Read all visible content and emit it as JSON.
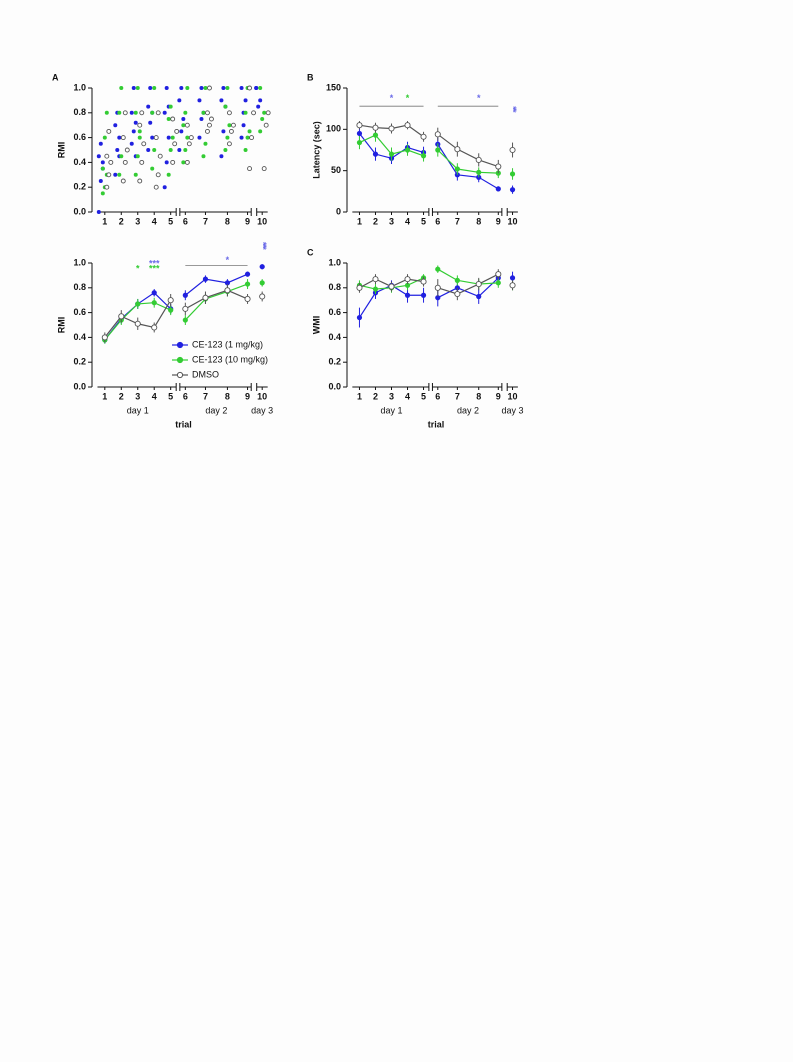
{
  "chart_data": [
    {
      "type": "scatter",
      "panel": "A",
      "ylabel": "RMI",
      "categories": [
        "1",
        "2",
        "3",
        "4",
        "5",
        "6",
        "7",
        "8",
        "9",
        "10"
      ],
      "ylim": [
        0,
        1
      ],
      "yticks": [
        {
          "value": 0,
          "label": "0.0"
        },
        0.2,
        0.4,
        0.6,
        0.8,
        {
          "value": 1,
          "label": "1.0"
        }
      ],
      "series": [
        {
          "color": "#2020e0",
          "marker": "filled",
          "values": [
            [
              0.0,
              0.25,
              0.35,
              0.45,
              0.55,
              0.4
            ],
            [
              0.3,
              0.5,
              0.6,
              0.7,
              0.8,
              0.45
            ],
            [
              0.55,
              0.65,
              0.72,
              0.8,
              1.0,
              0.45
            ],
            [
              0.5,
              0.72,
              0.8,
              0.85,
              1.0,
              0.6
            ],
            [
              0.2,
              0.4,
              0.6,
              0.8,
              1.0,
              0.85
            ],
            [
              0.5,
              0.65,
              0.75,
              0.9,
              1.0
            ],
            [
              0.6,
              0.75,
              0.8,
              0.9,
              1.0
            ],
            [
              0.45,
              0.65,
              0.85,
              0.9,
              1.0
            ],
            [
              0.6,
              0.8,
              0.9,
              1.0,
              0.7
            ],
            [
              1.0,
              0.85,
              0.9,
              1.0
            ]
          ]
        },
        {
          "color": "#33cc33",
          "marker": "filled",
          "values": [
            [
              0.15,
              0.2,
              0.3,
              0.35,
              0.6,
              0.8
            ],
            [
              0.3,
              0.45,
              0.6,
              0.8,
              1.0
            ],
            [
              0.3,
              0.45,
              0.6,
              0.8,
              1.0,
              0.65
            ],
            [
              0.35,
              0.5,
              0.6,
              0.8,
              1.0
            ],
            [
              0.3,
              0.5,
              0.6,
              0.75,
              0.85
            ],
            [
              0.4,
              0.5,
              0.6,
              0.7,
              0.8,
              1.0
            ],
            [
              0.45,
              0.55,
              0.65,
              0.8,
              1.0
            ],
            [
              0.5,
              0.6,
              0.7,
              0.85,
              1.0
            ],
            [
              0.5,
              0.6,
              0.65,
              0.8,
              1.0
            ],
            [
              0.65,
              0.75,
              0.8,
              1.0
            ]
          ]
        },
        {
          "color": "#555555",
          "marker": "open",
          "values": [
            [
              0.2,
              0.3,
              0.4,
              0.45,
              0.65
            ],
            [
              0.25,
              0.4,
              0.5,
              0.6,
              0.8
            ],
            [
              0.25,
              0.4,
              0.55,
              0.7,
              0.8
            ],
            [
              0.2,
              0.3,
              0.45,
              0.6,
              0.8
            ],
            [
              0.4,
              0.55,
              0.65,
              0.75
            ],
            [
              0.4,
              0.55,
              0.6,
              0.7
            ],
            [
              0.65,
              0.7,
              0.75,
              0.8,
              1.0
            ],
            [
              0.55,
              0.65,
              0.7,
              0.8
            ],
            [
              0.35,
              0.6,
              0.8,
              1.0
            ],
            [
              0.35,
              0.7,
              0.8
            ]
          ]
        }
      ]
    },
    {
      "type": "line",
      "ylabel": "RMI",
      "xlabel": "trial",
      "x_groups": [
        "day 1",
        "day 2",
        "day 3"
      ],
      "legend": true,
      "categories": [
        "1",
        "2",
        "3",
        "4",
        "5",
        "6",
        "7",
        "8",
        "9",
        "10"
      ],
      "ylim": [
        0,
        1
      ],
      "yticks": [
        {
          "value": 0,
          "label": "0.0"
        },
        0.2,
        0.4,
        0.6,
        0.8,
        {
          "value": 1,
          "label": "1.0"
        }
      ],
      "series": [
        {
          "name": "CE-123 (1 mg/kg)",
          "color": "#2020e0",
          "marker": "filled",
          "values": [
            0.38,
            0.55,
            0.67,
            0.76,
            0.63,
            0.74,
            0.87,
            0.84,
            0.91,
            0.97
          ],
          "errors": [
            0.03,
            0.04,
            0.04,
            0.03,
            0.04,
            0.04,
            0.03,
            0.03,
            0.02,
            0.02
          ]
        },
        {
          "name": "CE-123 (10 mg/kg)",
          "color": "#33cc33",
          "marker": "filled",
          "values": [
            0.38,
            0.54,
            0.67,
            0.68,
            0.62,
            0.54,
            0.71,
            0.77,
            0.83,
            0.84
          ],
          "errors": [
            0.03,
            0.04,
            0.04,
            0.04,
            0.04,
            0.04,
            0.04,
            0.04,
            0.04,
            0.03
          ]
        },
        {
          "name": "DMSO",
          "color": "#555555",
          "marker": "open",
          "values": [
            0.4,
            0.57,
            0.51,
            0.48,
            0.7,
            0.63,
            0.72,
            0.78,
            0.71,
            0.73
          ],
          "errors": [
            0.04,
            0.05,
            0.05,
            0.04,
            0.05,
            0.05,
            0.05,
            0.05,
            0.04,
            0.04
          ]
        }
      ],
      "annotations": [
        {
          "text": "*",
          "color": "#33cc33",
          "x": "3",
          "y": 0.95
        },
        {
          "text": "***",
          "color": "#6c6ce8",
          "x": "4",
          "y": 0.99
        },
        {
          "text": "***",
          "color": "#33cc33",
          "x": "4",
          "y": 0.95
        },
        {
          "text": "*",
          "color": "#6c6ce8",
          "x": "8",
          "y": 1.02
        },
        {
          "text": "****",
          "color": "#6c6ce8",
          "x": "10",
          "y": 1.17,
          "vertical": true
        }
      ]
    },
    {
      "type": "line",
      "panel": "B",
      "ylabel": "Latency (sec)",
      "categories": [
        "1",
        "2",
        "3",
        "4",
        "5",
        "6",
        "7",
        "8",
        "9",
        "10"
      ],
      "ylim": [
        0,
        150
      ],
      "yticks": [
        0,
        50,
        100,
        150
      ],
      "series": [
        {
          "color": "#2020e0",
          "marker": "filled",
          "values": [
            95,
            70,
            65,
            78,
            72,
            82,
            45,
            42,
            28,
            27
          ],
          "errors": [
            8,
            8,
            7,
            7,
            7,
            8,
            7,
            6,
            3,
            5
          ]
        },
        {
          "color": "#33cc33",
          "marker": "filled",
          "values": [
            84,
            93,
            70,
            75,
            68,
            75,
            52,
            48,
            47,
            46
          ],
          "errors": [
            8,
            8,
            8,
            7,
            7,
            8,
            7,
            6,
            6,
            7
          ]
        },
        {
          "color": "#555555",
          "marker": "open",
          "values": [
            105,
            102,
            101,
            105,
            91,
            94,
            76,
            63,
            55,
            75
          ],
          "errors": [
            5,
            6,
            6,
            5,
            6,
            8,
            9,
            8,
            8,
            9
          ]
        }
      ],
      "annotations": [
        {
          "text": "*",
          "color": "#6c6ce8",
          "x": "3",
          "y": 137
        },
        {
          "text": "*",
          "color": "#33cc33",
          "x": "4",
          "y": 137
        },
        {
          "text": "*",
          "color": "#6c6ce8",
          "x": "8",
          "y": 137
        },
        {
          "text": "***",
          "color": "#6c6ce8",
          "x": "10",
          "y": 128,
          "vertical": true
        }
      ]
    },
    {
      "type": "line",
      "panel": "C",
      "ylabel": "WMI",
      "xlabel": "trial",
      "x_groups": [
        "day 1",
        "day 2",
        "day 3"
      ],
      "categories": [
        "1",
        "2",
        "3",
        "4",
        "5",
        "6",
        "7",
        "8",
        "9",
        "10"
      ],
      "ylim": [
        0,
        1
      ],
      "yticks": [
        {
          "value": 0,
          "label": "0.0"
        },
        0.2,
        0.4,
        0.6,
        0.8,
        {
          "value": 1,
          "label": "1.0"
        }
      ],
      "series": [
        {
          "color": "#2020e0",
          "marker": "filled",
          "values": [
            0.56,
            0.76,
            0.82,
            0.74,
            0.74,
            0.72,
            0.8,
            0.73,
            0.88,
            0.88
          ],
          "errors": [
            0.08,
            0.05,
            0.04,
            0.06,
            0.06,
            0.07,
            0.05,
            0.06,
            0.04,
            0.05
          ]
        },
        {
          "color": "#33cc33",
          "marker": "filled",
          "values": [
            0.82,
            0.79,
            0.8,
            0.82,
            0.88,
            0.95,
            0.86,
            0.83,
            0.84,
            0.82
          ],
          "errors": [
            0.04,
            0.04,
            0.04,
            0.04,
            0.03,
            0.03,
            0.04,
            0.04,
            0.04,
            0.04
          ]
        },
        {
          "color": "#555555",
          "marker": "open",
          "values": [
            0.8,
            0.87,
            0.81,
            0.87,
            0.85,
            0.8,
            0.75,
            0.83,
            0.91,
            0.82
          ],
          "errors": [
            0.04,
            0.04,
            0.04,
            0.04,
            0.04,
            0.07,
            0.05,
            0.05,
            0.04,
            0.04
          ]
        }
      ]
    }
  ]
}
